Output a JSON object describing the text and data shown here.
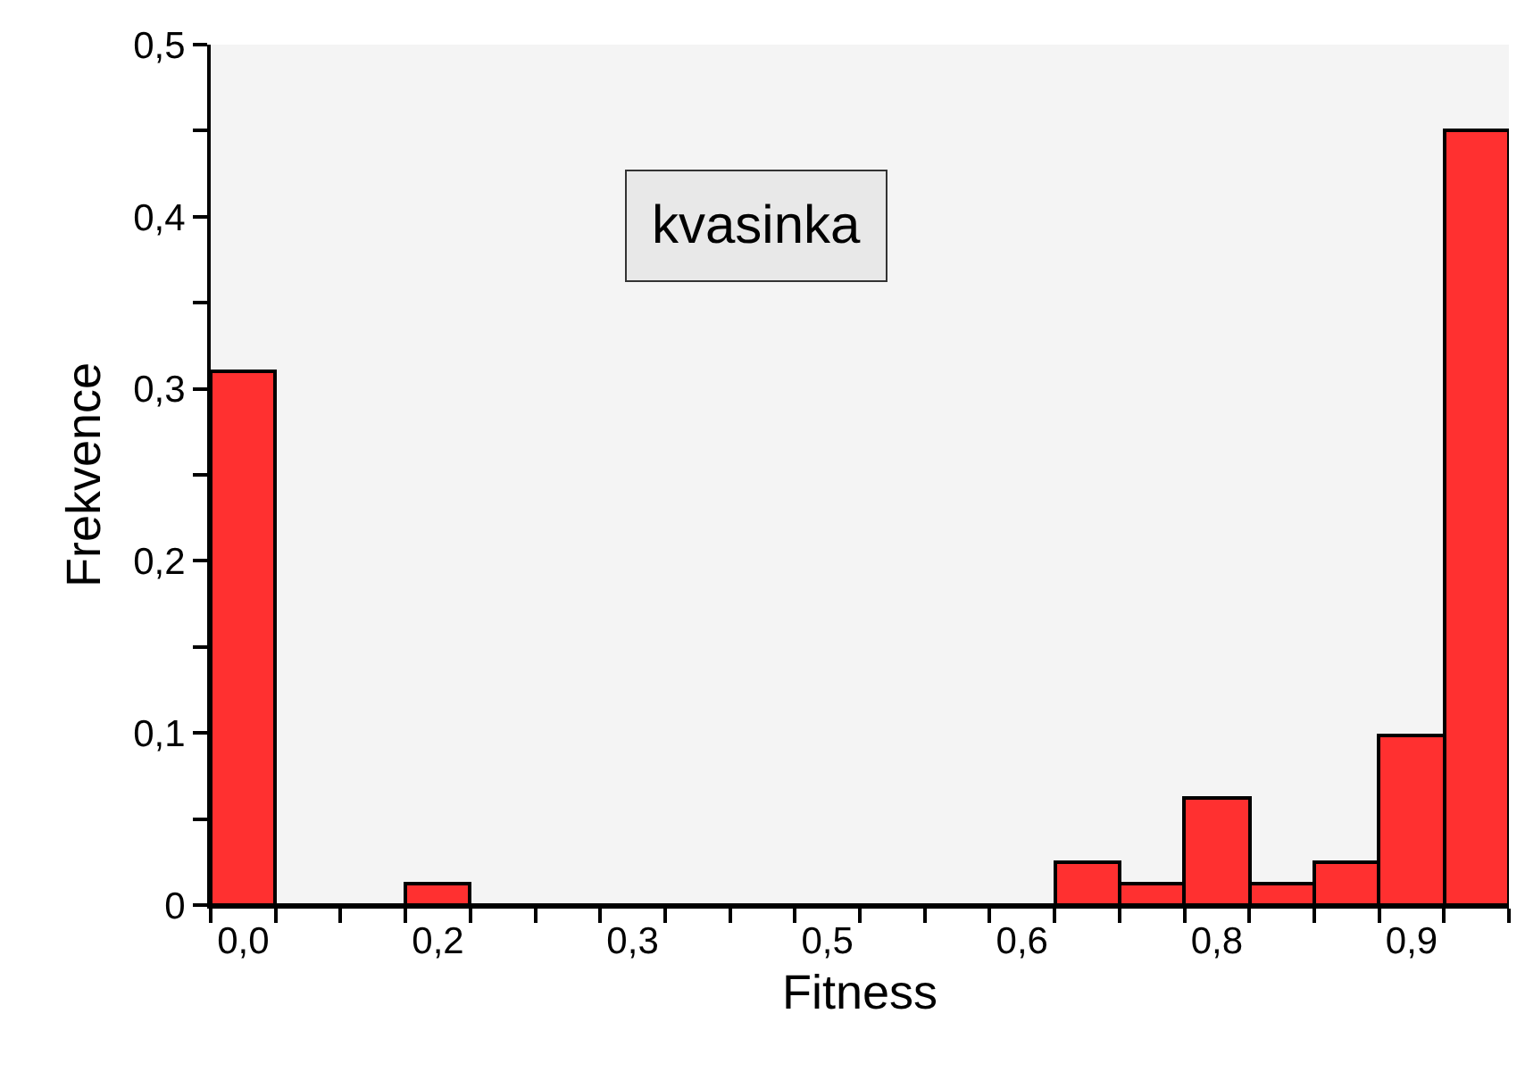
{
  "chart_data": {
    "type": "bar",
    "xlabel": "Fitness",
    "ylabel": "Frekvence",
    "categories": [
      "0,0",
      null,
      null,
      "0,2",
      null,
      null,
      "0,3",
      null,
      null,
      "0,5",
      null,
      null,
      "0,6",
      null,
      null,
      "0,8",
      null,
      null,
      "0,9",
      null
    ],
    "values": [
      0.31,
      0,
      0,
      0.0125,
      0,
      0,
      0,
      0,
      0,
      0,
      0,
      0,
      0,
      0.025,
      0.0125,
      0.062,
      0.0125,
      0.025,
      0.099,
      0.45
    ],
    "color": "#ff3030",
    "ylim": [
      0,
      0.5
    ],
    "yticks": [
      0,
      {
        "value": 0.05,
        "label": null
      },
      {
        "value": 0.1,
        "label": "0,1"
      },
      {
        "value": 0.15,
        "label": null
      },
      {
        "value": 0.2,
        "label": "0,2"
      },
      {
        "value": 0.25,
        "label": null
      },
      {
        "value": 0.3,
        "label": "0,3"
      },
      {
        "value": 0.35,
        "label": null
      },
      {
        "value": 0.4,
        "label": "0,4"
      },
      {
        "value": 0.45,
        "label": null
      },
      {
        "value": 0.5,
        "label": "0,5"
      }
    ],
    "grid": false,
    "legend": false,
    "annotations": [
      "kvasinka"
    ]
  }
}
